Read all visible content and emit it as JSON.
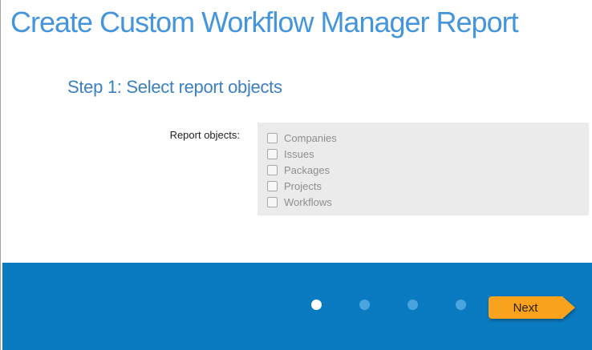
{
  "page": {
    "title": "Create Custom Workflow Manager Report",
    "step_title": "Step 1: Select report objects"
  },
  "form": {
    "label": "Report objects:",
    "options": [
      {
        "label": "Companies",
        "checked": false
      },
      {
        "label": "Issues",
        "checked": false
      },
      {
        "label": "Packages",
        "checked": false
      },
      {
        "label": "Projects",
        "checked": false
      },
      {
        "label": "Workflows",
        "checked": false
      }
    ]
  },
  "footer": {
    "steps_total": 4,
    "active_step": 1,
    "next_label": "Next"
  },
  "colors": {
    "title_blue": "#4495dc",
    "step_title_blue": "#3b80c3",
    "footer_blue": "#0a7bc1",
    "dot_inactive_blue": "#4aa4de",
    "dot_active_white": "#ffffff",
    "panel_gray": "#ebebeb",
    "option_text_gray": "#8e8e8e",
    "next_orange": "#f8a21d"
  }
}
